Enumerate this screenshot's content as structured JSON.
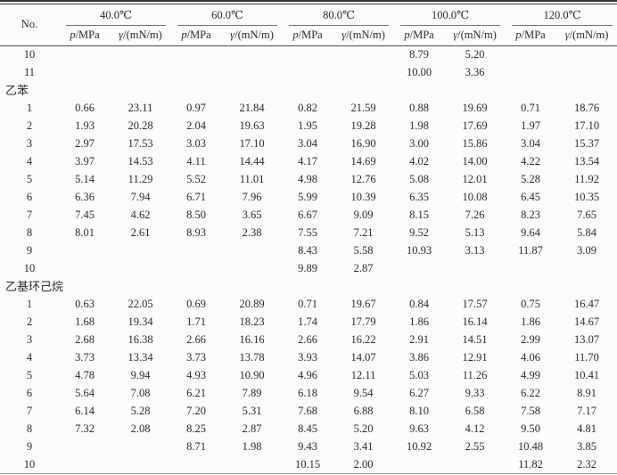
{
  "table": {
    "no_header": "No.",
    "p_italic": "p",
    "p_unit": "/MPa",
    "gamma_italic": "γ",
    "gamma_unit": "/(mN/m)",
    "temp_groups": [
      {
        "label": "40.0℃"
      },
      {
        "label": "60.0℃"
      },
      {
        "label": "80.0℃"
      },
      {
        "label": "100.0℃"
      },
      {
        "label": "120.0℃"
      }
    ],
    "rows": [
      {
        "no": "10",
        "cells": [
          "",
          "",
          "",
          "",
          "",
          "",
          "8.79",
          "5.20",
          "",
          ""
        ]
      },
      {
        "no": "11",
        "cells": [
          "",
          "",
          "",
          "",
          "",
          "",
          "10.00",
          "3.36",
          "",
          ""
        ]
      },
      {
        "section": "乙苯"
      },
      {
        "no": "1",
        "cells": [
          "0.66",
          "23.11",
          "0.97",
          "21.84",
          "0.82",
          "21.59",
          "0.88",
          "19.69",
          "0.71",
          "18.76"
        ]
      },
      {
        "no": "2",
        "cells": [
          "1.93",
          "20.28",
          "2.04",
          "19.63",
          "1.95",
          "19.28",
          "1.98",
          "17.69",
          "1.97",
          "17.10"
        ]
      },
      {
        "no": "3",
        "cells": [
          "2.97",
          "17.53",
          "3.03",
          "17.10",
          "3.04",
          "16.90",
          "3.00",
          "15.86",
          "3.04",
          "15.37"
        ]
      },
      {
        "no": "4",
        "cells": [
          "3.97",
          "14.53",
          "4.11",
          "14.44",
          "4.17",
          "14.69",
          "4.02",
          "14.00",
          "4.22",
          "13.54"
        ]
      },
      {
        "no": "5",
        "cells": [
          "5.14",
          "11.29",
          "5.52",
          "11.01",
          "4.98",
          "12.76",
          "5.08",
          "12.01",
          "5.28",
          "11.92"
        ]
      },
      {
        "no": "6",
        "cells": [
          "6.36",
          "7.94",
          "6.71",
          "7.96",
          "5.99",
          "10.39",
          "6.35",
          "10.08",
          "6.45",
          "10.35"
        ]
      },
      {
        "no": "7",
        "cells": [
          "7.45",
          "4.62",
          "8.50",
          "3.65",
          "6.67",
          "9.09",
          "8.15",
          "7.26",
          "8.23",
          "7.65"
        ]
      },
      {
        "no": "8",
        "cells": [
          "8.01",
          "2.61",
          "8.93",
          "2.38",
          "7.55",
          "7.21",
          "9.52",
          "5.13",
          "9.64",
          "5.84"
        ]
      },
      {
        "no": "9",
        "cells": [
          "",
          "",
          "",
          "",
          "8.43",
          "5.58",
          "10.93",
          "3.13",
          "11.87",
          "3.09"
        ]
      },
      {
        "no": "10",
        "cells": [
          "",
          "",
          "",
          "",
          "9.89",
          "2.87",
          "",
          "",
          "",
          ""
        ]
      },
      {
        "section": "乙基环己烷"
      },
      {
        "no": "1",
        "cells": [
          "0.63",
          "22.05",
          "0.69",
          "20.89",
          "0.71",
          "19.67",
          "0.84",
          "17.57",
          "0.75",
          "16.47"
        ]
      },
      {
        "no": "2",
        "cells": [
          "1.68",
          "19.34",
          "1.71",
          "18.23",
          "1.74",
          "17.79",
          "1.86",
          "16.14",
          "1.86",
          "14.67"
        ]
      },
      {
        "no": "3",
        "cells": [
          "2.68",
          "16.38",
          "2.66",
          "16.16",
          "2.66",
          "16.22",
          "2.91",
          "14.51",
          "2.99",
          "13.07"
        ]
      },
      {
        "no": "4",
        "cells": [
          "3.73",
          "13.34",
          "3.73",
          "13.78",
          "3.93",
          "14.07",
          "3.86",
          "12.91",
          "4.06",
          "11.70"
        ]
      },
      {
        "no": "5",
        "cells": [
          "4.78",
          "9.94",
          "4.93",
          "10.90",
          "4.96",
          "12.11",
          "5.03",
          "11.26",
          "4.99",
          "10.41"
        ]
      },
      {
        "no": "6",
        "cells": [
          "5.64",
          "7.08",
          "6.21",
          "7.89",
          "6.18",
          "9.54",
          "6.27",
          "9.33",
          "6.22",
          "8.91"
        ]
      },
      {
        "no": "7",
        "cells": [
          "6.14",
          "5.28",
          "7.20",
          "5.31",
          "7.68",
          "6.88",
          "8.10",
          "6.58",
          "7.58",
          "7.17"
        ]
      },
      {
        "no": "8",
        "cells": [
          "7.32",
          "2.08",
          "8.25",
          "2.87",
          "8.45",
          "5.20",
          "9.63",
          "4.12",
          "9.50",
          "4.81"
        ]
      },
      {
        "no": "9",
        "cells": [
          "",
          "",
          "8.71",
          "1.98",
          "9.43",
          "3.41",
          "10.92",
          "2.55",
          "10.48",
          "3.85"
        ]
      },
      {
        "no": "10",
        "cells": [
          "",
          "",
          "",
          "",
          "10.15",
          "2.00",
          "",
          "",
          "11.82",
          "2.32"
        ]
      }
    ]
  }
}
